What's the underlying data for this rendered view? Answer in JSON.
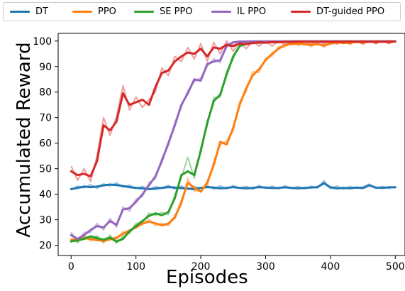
{
  "chart_data": {
    "type": "line",
    "xlabel": "Episodes",
    "ylabel": "Accumulated Reward",
    "xlim": [
      -20,
      515
    ],
    "ylim": [
      16,
      103
    ],
    "xticks": [
      0,
      100,
      200,
      300,
      400,
      500
    ],
    "yticks": [
      20,
      30,
      40,
      50,
      60,
      70,
      80,
      90,
      100
    ],
    "grid": false,
    "legend_placement": "top, above plot, single row",
    "series": [
      {
        "name": "DT",
        "color": "#1f77b4",
        "x": [
          0,
          10,
          20,
          30,
          40,
          50,
          60,
          70,
          80,
          90,
          100,
          110,
          120,
          130,
          140,
          150,
          160,
          170,
          180,
          190,
          200,
          210,
          220,
          230,
          240,
          250,
          260,
          270,
          280,
          290,
          300,
          310,
          320,
          330,
          340,
          350,
          360,
          370,
          380,
          390,
          400,
          410,
          420,
          430,
          440,
          450,
          460,
          470,
          480,
          490,
          500
        ],
        "smooth": [
          42,
          42.5,
          43,
          42.8,
          43,
          43.5,
          43.8,
          43.6,
          43.2,
          42.8,
          42.5,
          42.3,
          42,
          42.2,
          42.5,
          42.8,
          42.6,
          42.4,
          42.2,
          42,
          42.5,
          42.8,
          42.6,
          42.3,
          42.5,
          42.8,
          42.5,
          42.3,
          42.5,
          42.8,
          42.6,
          42.4,
          42.5,
          42.7,
          42.5,
          42.3,
          42.5,
          42.6,
          42.8,
          44.3,
          42.7,
          42.3,
          42.5,
          42.3,
          42.6,
          42.4,
          43.5,
          42.6,
          42.5,
          42.7,
          42.7
        ],
        "raw": [
          41.8,
          43.2,
          42.5,
          43.8,
          42.3,
          44.1,
          43.2,
          44.5,
          42.7,
          43.6,
          42.2,
          43.1,
          41.8,
          43,
          42.4,
          43.5,
          42,
          43.2,
          41.9,
          43.1,
          42.2,
          43.4,
          42,
          43.3,
          42.1,
          43.4,
          42.4,
          43.1,
          42,
          43.5,
          42.2,
          43.2,
          42.1,
          43.3,
          42.2,
          43.1,
          42,
          43.2,
          42.4,
          45.3,
          42.1,
          43.2,
          42,
          43.1,
          42.3,
          42.9,
          44,
          42.2,
          43.1,
          42.3,
          43
        ]
      },
      {
        "name": "PPO",
        "color": "#ff7f0e",
        "x": [
          0,
          10,
          20,
          30,
          40,
          50,
          60,
          70,
          80,
          90,
          100,
          110,
          120,
          130,
          140,
          150,
          160,
          170,
          180,
          190,
          200,
          210,
          220,
          230,
          240,
          250,
          260,
          270,
          280,
          290,
          300,
          310,
          320,
          330,
          340,
          350,
          360,
          370,
          380,
          390,
          400,
          410,
          420,
          430,
          440,
          450,
          460,
          470,
          480,
          490,
          500
        ],
        "smooth": [
          22,
          22.5,
          22.8,
          22.5,
          22,
          21.8,
          22.3,
          23,
          24.5,
          25.8,
          27,
          28.5,
          29.3,
          28.6,
          27.8,
          28.5,
          30.8,
          37,
          44.5,
          42.5,
          41,
          44.6,
          51.5,
          60.5,
          59.5,
          66,
          75,
          81.5,
          86.5,
          89,
          92.5,
          95,
          97,
          98.5,
          98.8,
          99,
          98.7,
          98.5,
          98.8,
          98.2,
          99,
          99.5,
          99.2,
          99.4,
          99.6,
          99.5,
          99.7,
          99.6,
          99.8,
          99.7,
          99.8
        ],
        "raw": [
          23,
          21.5,
          23.8,
          21.6,
          22.9,
          20.9,
          23.1,
          22.2,
          25.3,
          24.9,
          27.6,
          28.1,
          30.2,
          27.7,
          28.7,
          27.6,
          31.9,
          35.5,
          46.2,
          41.1,
          42.3,
          43.1,
          53,
          59.2,
          61,
          64.8,
          76.2,
          80.1,
          88,
          87.7,
          93.5,
          94,
          97.9,
          97.6,
          99.6,
          98.2,
          99.7,
          97.7,
          99.5,
          97.5,
          99.8,
          98.9,
          100,
          98.6,
          100,
          98.8,
          100,
          99,
          100,
          99.1,
          99.8
        ]
      },
      {
        "name": "SE PPO",
        "color": "#2ca02c",
        "x": [
          0,
          10,
          20,
          30,
          40,
          50,
          60,
          70,
          80,
          90,
          100,
          110,
          120,
          130,
          140,
          150,
          160,
          170,
          180,
          190,
          200,
          210,
          220,
          230,
          240,
          250,
          260,
          270,
          280,
          290,
          300,
          310,
          320,
          330,
          340,
          350,
          360,
          370,
          380,
          390,
          400,
          410,
          420,
          430,
          440,
          450,
          460,
          470,
          480,
          490,
          500
        ],
        "smooth": [
          21.5,
          22,
          22.5,
          23.5,
          22.8,
          22.2,
          23,
          21.5,
          22.5,
          25.5,
          27.5,
          29.5,
          31.5,
          32.5,
          31.8,
          33,
          38.5,
          47.5,
          49,
          47.5,
          57,
          68,
          76.5,
          79,
          87,
          94,
          98,
          99,
          99.3,
          99.5,
          99.6,
          99.7,
          99.8,
          99.8,
          99.9,
          99.9,
          99.9,
          99.9,
          99.9,
          99.9,
          99.9,
          99.9,
          99.9,
          99.9,
          99.9,
          99.9,
          99.9,
          99.9,
          99.9,
          99.9,
          99.9
        ],
        "raw": [
          22.3,
          21.1,
          23.4,
          22.7,
          23.7,
          21.3,
          24,
          20.8,
          23.5,
          24.7,
          28.6,
          28.7,
          32.6,
          31.7,
          32.9,
          32,
          39.7,
          46.4,
          54.5,
          46.3,
          58.2,
          66.8,
          77.9,
          78,
          88.1,
          93,
          99,
          98.5,
          99.8,
          99,
          100,
          99.3,
          100,
          99.5,
          100,
          99.6,
          100,
          99.6,
          100,
          99.6,
          100,
          99.7,
          100,
          99.7,
          100,
          99.7,
          100,
          99.7,
          100,
          99.7,
          100
        ]
      },
      {
        "name": "IL PPO",
        "color": "#9467bd",
        "x": [
          0,
          10,
          20,
          30,
          40,
          50,
          60,
          70,
          80,
          90,
          100,
          110,
          120,
          130,
          140,
          150,
          160,
          170,
          180,
          190,
          200,
          210,
          220,
          230,
          240,
          250,
          260,
          270,
          280,
          290,
          300,
          310,
          320,
          330,
          340,
          350,
          360,
          370,
          380,
          390,
          400,
          410,
          420,
          430,
          440,
          450,
          460,
          470,
          480,
          490,
          500
        ],
        "smooth": [
          24,
          22.5,
          24,
          26,
          27.5,
          27,
          29.5,
          28,
          34,
          34.5,
          37,
          40,
          43.5,
          47,
          53,
          60,
          67,
          75,
          79.5,
          85,
          84.5,
          91,
          92,
          92.5,
          98,
          99.5,
          99.8,
          99.8,
          99.9,
          99.9,
          99.9,
          99.9,
          99.9,
          99.9,
          99.9,
          99.9,
          99.9,
          99.9,
          99.9,
          99.9,
          99.9,
          99.9,
          99.9,
          99.9,
          99.9,
          99.9,
          99.9,
          99.9,
          99.9,
          99.9,
          99.9
        ],
        "raw": [
          25.2,
          21.4,
          25.1,
          25,
          28.6,
          26,
          30.6,
          27,
          35.1,
          33.4,
          38.1,
          39,
          44.6,
          46,
          54.1,
          59,
          68.1,
          74,
          80.6,
          84,
          85.6,
          90,
          93.1,
          91.5,
          99,
          98.5,
          100,
          99,
          100,
          99.1,
          100,
          99.2,
          100,
          99.2,
          100,
          99.3,
          100,
          99.3,
          100,
          99.3,
          100,
          99.4,
          100,
          99.4,
          100,
          99.4,
          100,
          99.4,
          100,
          99.4,
          100
        ]
      },
      {
        "name": "DT-guided PPO",
        "color": "#d62728",
        "x": [
          0,
          10,
          20,
          30,
          40,
          50,
          60,
          70,
          80,
          90,
          100,
          110,
          120,
          130,
          140,
          150,
          160,
          170,
          180,
          190,
          200,
          210,
          220,
          230,
          240,
          250,
          260,
          270,
          280,
          290,
          300,
          310,
          320,
          330,
          340,
          350,
          360,
          370,
          380,
          390,
          400,
          410,
          420,
          430,
          440,
          450,
          460,
          470,
          480,
          490,
          500
        ],
        "smooth": [
          49,
          47.5,
          48,
          47,
          53,
          67,
          65,
          68.5,
          79.5,
          75,
          76,
          77,
          75,
          82,
          87.5,
          88.5,
          92,
          94,
          95.5,
          95,
          97,
          94,
          97.5,
          97,
          98.5,
          98,
          99,
          98.8,
          99.2,
          99.5,
          99.3,
          99.6,
          99.5,
          99.7,
          99.6,
          99.8,
          99.7,
          99.8,
          99.7,
          99.8,
          99.7,
          99.8,
          99.7,
          99.8,
          99.7,
          99.8,
          99.7,
          99.8,
          99.7,
          99.8,
          99.8
        ],
        "raw": [
          51,
          45.5,
          50,
          45,
          55,
          70,
          63,
          70.5,
          82.5,
          73,
          78,
          74,
          77,
          80,
          89.5,
          86.5,
          94,
          92,
          97.5,
          93,
          99,
          92,
          99.5,
          95,
          100,
          96,
          100,
          97,
          100,
          98,
          100,
          98,
          100,
          98.5,
          100,
          98.6,
          100,
          98.7,
          100,
          98.8,
          100,
          98.8,
          100,
          98.9,
          100,
          98.9,
          100,
          99,
          100,
          99,
          99.9
        ]
      }
    ]
  }
}
